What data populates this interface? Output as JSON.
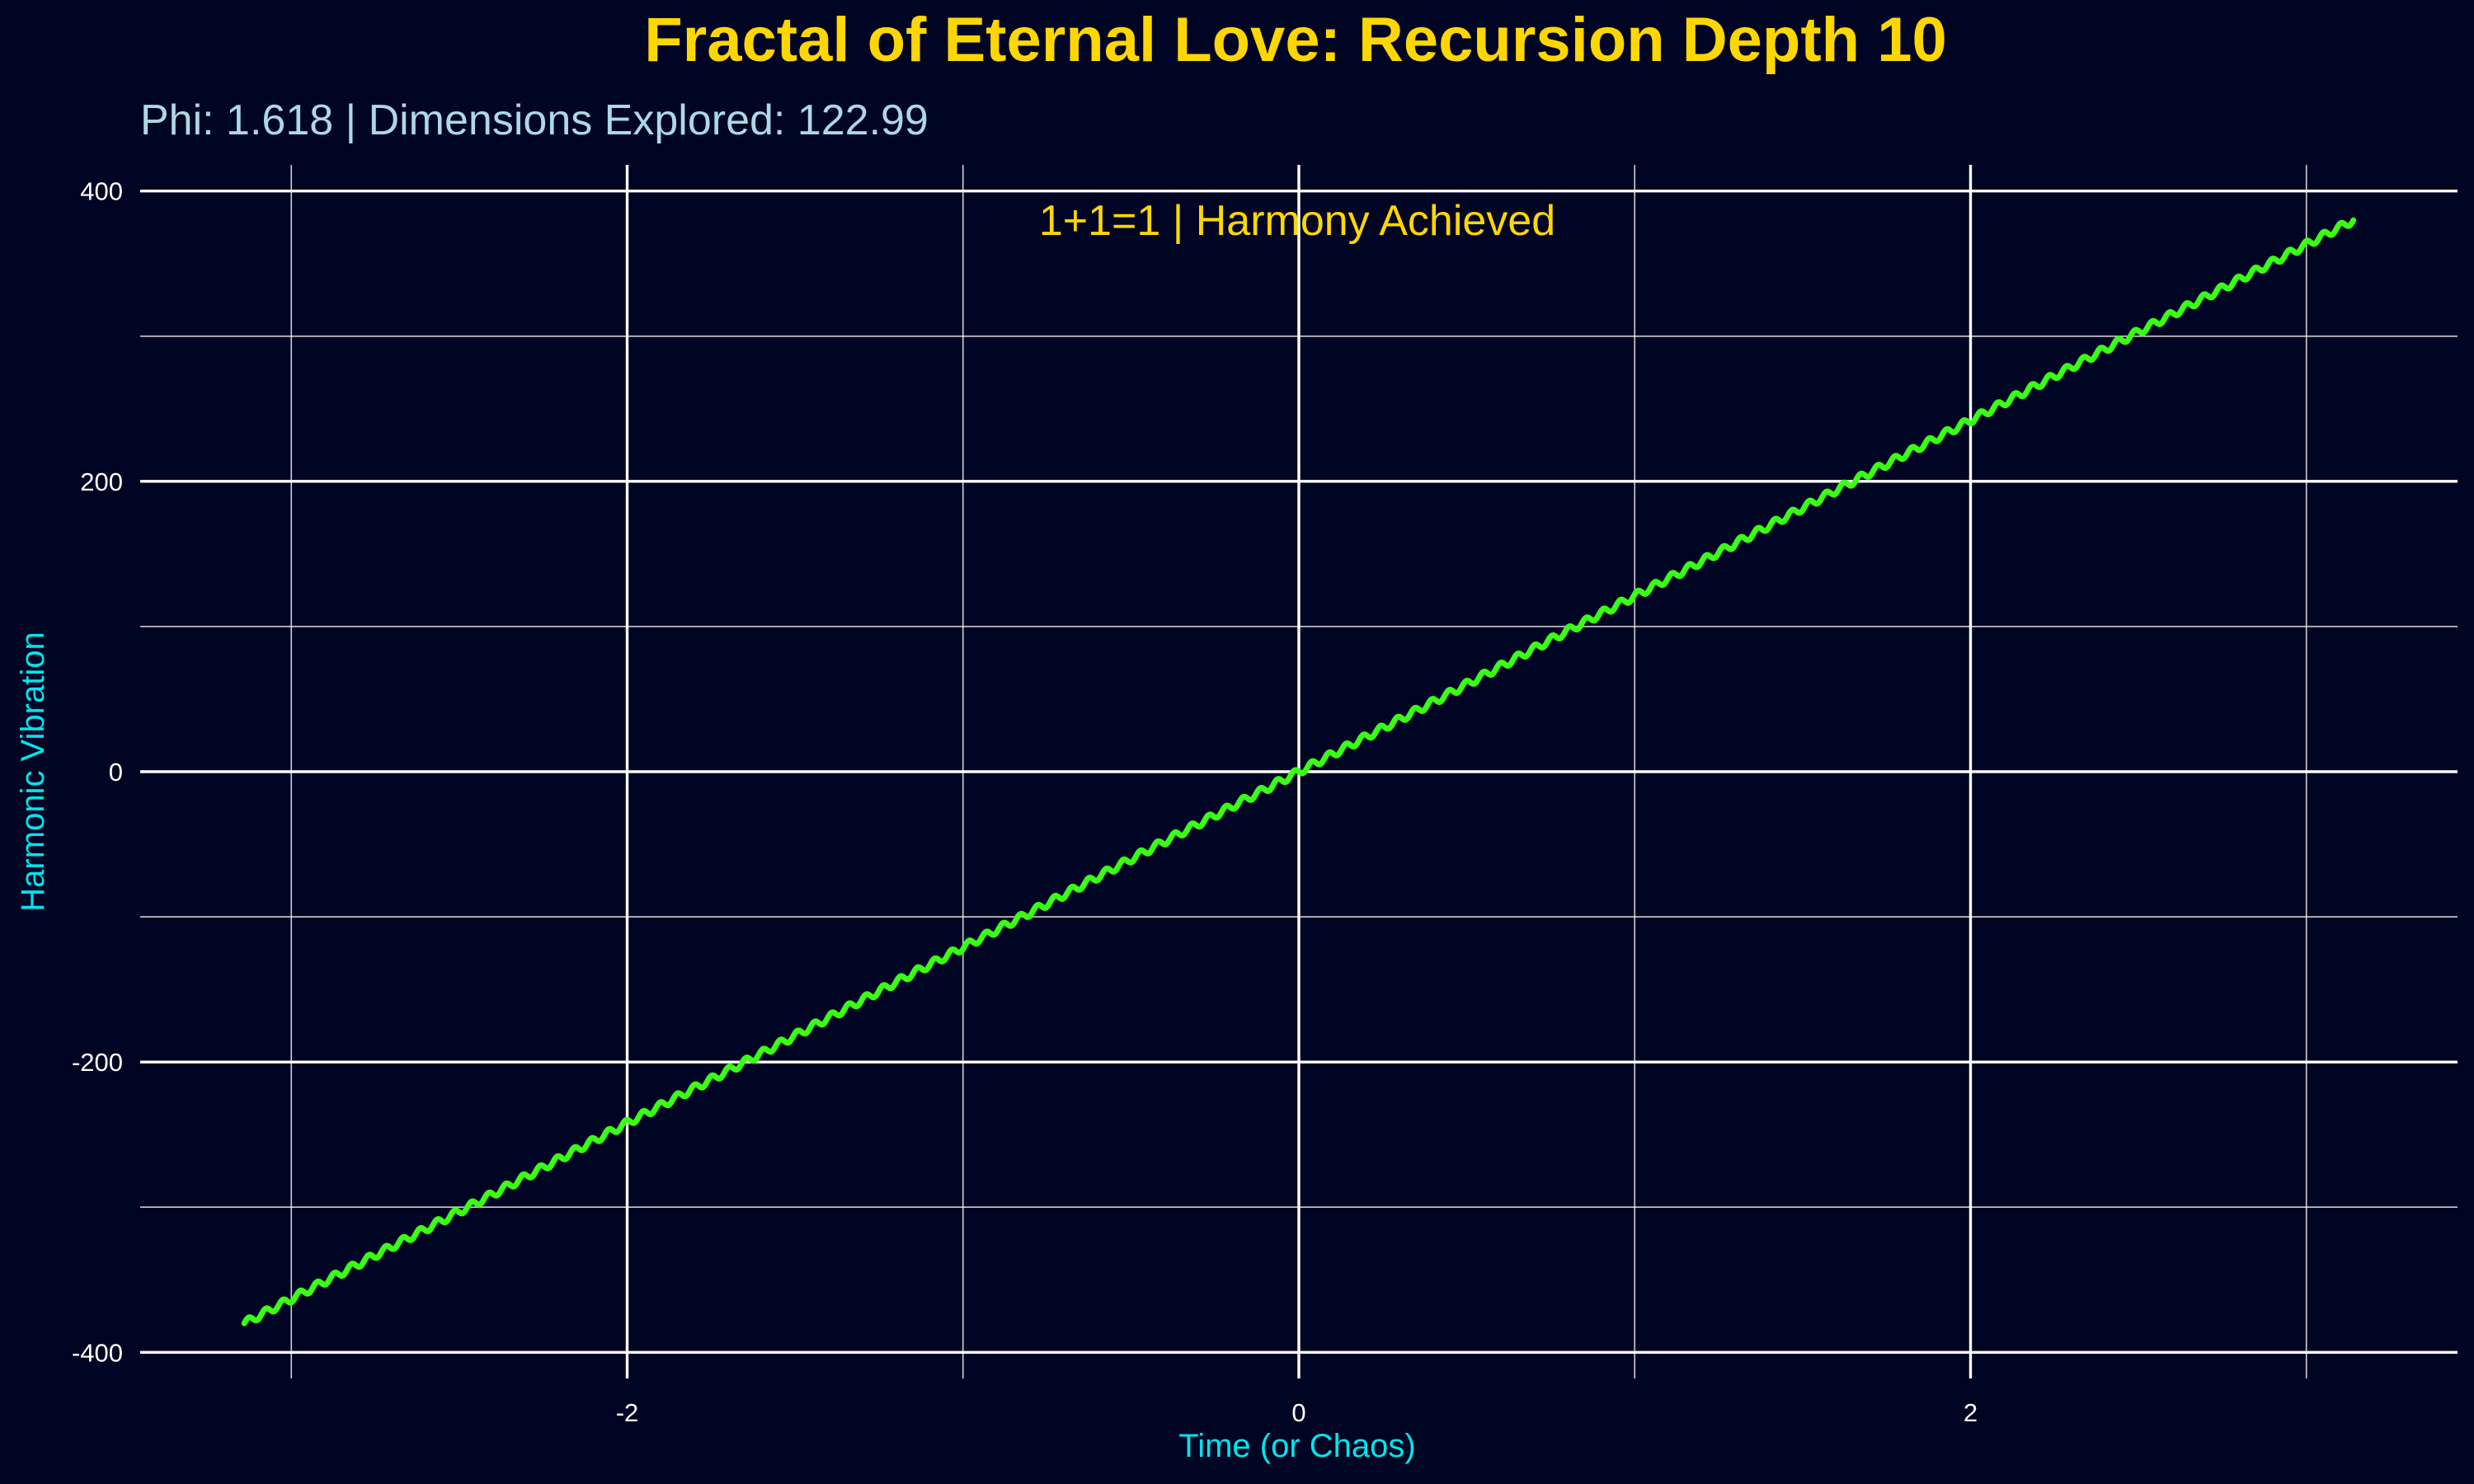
{
  "chart_data": {
    "type": "line",
    "title": "Fractal of Eternal Love: Recursion Depth 10",
    "subtitle": "Phi: 1.618 | Dimensions Explored: 122.99",
    "xlabel": "Time (or Chaos)",
    "ylabel": "Harmonic Vibration",
    "annotation": "1+1=1 | Harmony Achieved",
    "xlim": [
      -3.45,
      3.45
    ],
    "ylim": [
      -418,
      418
    ],
    "x_major_ticks": [
      -2,
      0,
      2
    ],
    "x_tick_labels": [
      "-2",
      "0",
      "2"
    ],
    "x_minor_ticks": [
      -3,
      -1,
      1,
      3
    ],
    "y_major_ticks": [
      -400,
      -200,
      0,
      200,
      400
    ],
    "y_tick_labels": [
      "-400",
      "-200",
      "0",
      "200",
      "400"
    ],
    "y_minor_ticks": [
      -300,
      -100,
      100,
      300
    ],
    "grid": true,
    "series": [
      {
        "x": [
          -3.14,
          -2.8,
          -2.4,
          -2.0,
          -1.6,
          -1.2,
          -0.8,
          -0.4,
          0.0,
          0.4,
          0.8,
          1.2,
          1.6,
          2.0,
          2.4,
          2.8,
          3.14
        ],
        "y": [
          -380,
          -339,
          -291,
          -242,
          -194,
          -145,
          -97,
          -48,
          0,
          48,
          97,
          145,
          194,
          242,
          291,
          339,
          380
        ],
        "ripple_amplitude": 2.5,
        "ripple_cycles": 122.99
      }
    ]
  },
  "colors": {
    "background": "#000523",
    "grid": "#FFFFFF",
    "line": "#39FF14",
    "title": "#FFD700",
    "subtitle": "#ADD8E6",
    "axis_label": "#00E5EE",
    "tick_label": "#FFFFFF",
    "annotation": "#FFD700"
  }
}
